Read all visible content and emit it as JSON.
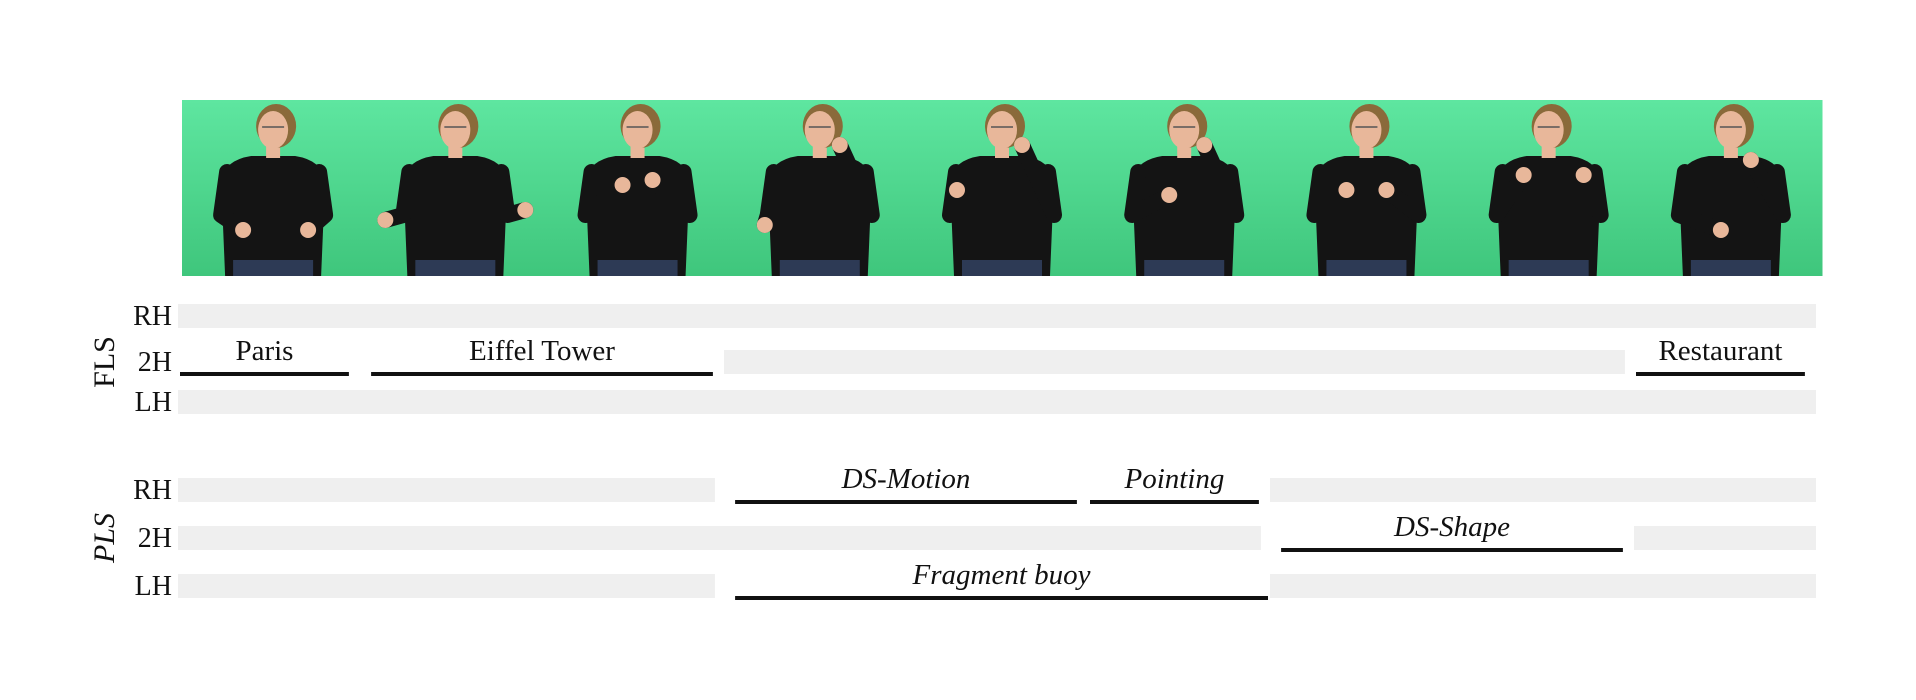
{
  "figure": {
    "frames": [
      {
        "signer": "frame-1"
      },
      {
        "signer": "frame-2"
      },
      {
        "signer": "frame-3"
      },
      {
        "signer": "frame-4"
      },
      {
        "signer": "frame-5"
      },
      {
        "signer": "frame-6"
      },
      {
        "signer": "frame-7"
      },
      {
        "signer": "frame-8"
      },
      {
        "signer": "frame-9"
      }
    ],
    "colors": {
      "background_green": "#4fd98f",
      "lane": "#efefef",
      "bar": "#111111",
      "shirt": "#141414",
      "chair": "#8a2a3c",
      "skin": "#e8b79a",
      "hair": "#8a6a3a"
    },
    "groups": [
      {
        "label": "FLS",
        "italic": false,
        "rows": [
          "RH",
          "2H",
          "LH"
        ],
        "segments": [
          {
            "row": "2H",
            "label": "Paris",
            "start": 0,
            "end": 0.95
          },
          {
            "row": "2H",
            "label": "Eiffel Tower",
            "start": 1.05,
            "end": 2.95
          },
          {
            "row": "2H",
            "label": "Restaurant",
            "start": 8.0,
            "end": 8.95
          }
        ],
        "lanes": [
          {
            "row": "RH",
            "start": 0,
            "end": 9
          },
          {
            "row": "2H",
            "start": 3.0,
            "end": 7.95
          },
          {
            "row": "LH",
            "start": 0,
            "end": 9
          }
        ]
      },
      {
        "label": "PLS",
        "italic": true,
        "rows": [
          "RH",
          "2H",
          "LH"
        ],
        "segments": [
          {
            "row": "RH",
            "label": "DS-Motion",
            "start": 3.05,
            "end": 4.95
          },
          {
            "row": "RH",
            "label": "Pointing",
            "start": 5.0,
            "end": 5.95
          },
          {
            "row": "2H",
            "label": "DS-Shape",
            "start": 6.05,
            "end": 7.95
          },
          {
            "row": "LH",
            "label": "Fragment buoy",
            "start": 3.05,
            "end": 6.0
          }
        ],
        "lanes": [
          {
            "row": "RH",
            "start": 0,
            "end": 2.95
          },
          {
            "row": "RH",
            "start": 6.0,
            "end": 9
          },
          {
            "row": "2H",
            "start": 0,
            "end": 5.95
          },
          {
            "row": "2H",
            "start": 8.0,
            "end": 9
          },
          {
            "row": "LH",
            "start": 0,
            "end": 2.95
          },
          {
            "row": "LH",
            "start": 6.0,
            "end": 9
          }
        ]
      }
    ]
  }
}
